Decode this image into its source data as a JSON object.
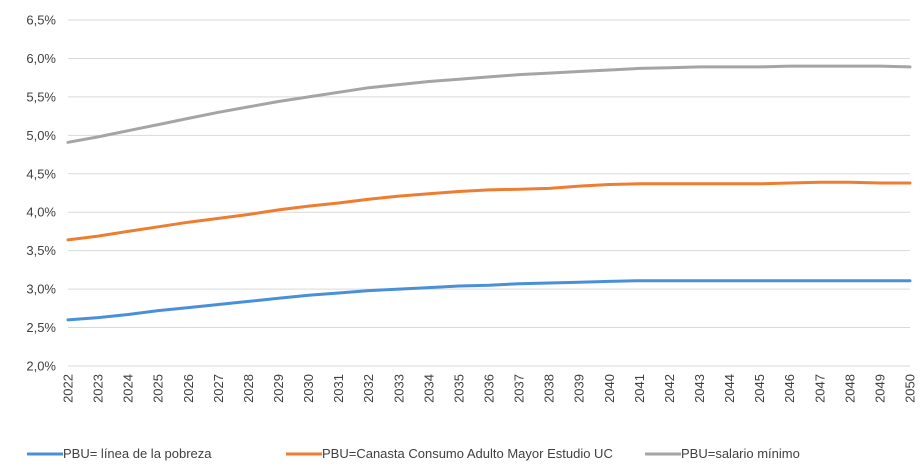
{
  "chart_data": {
    "type": "line",
    "title": "",
    "xlabel": "",
    "ylabel": "",
    "ylim": [
      0.02,
      0.065
    ],
    "yticks": [
      "2,0%",
      "2,5%",
      "3,0%",
      "3,5%",
      "4,0%",
      "4,5%",
      "5,0%",
      "5,5%",
      "6,0%",
      "6,5%"
    ],
    "x": [
      "2022",
      "2023",
      "2024",
      "2025",
      "2026",
      "2027",
      "2028",
      "2029",
      "2030",
      "2031",
      "2032",
      "2033",
      "2034",
      "2035",
      "2036",
      "2037",
      "2038",
      "2039",
      "2040",
      "2041",
      "2042",
      "2043",
      "2044",
      "2045",
      "2046",
      "2047",
      "2048",
      "2049",
      "2050"
    ],
    "grid": true,
    "legend_position": "bottom",
    "series": [
      {
        "name": "PBU= línea de la pobreza",
        "color": "#4a90d9",
        "values": [
          0.026,
          0.0263,
          0.0267,
          0.0272,
          0.0276,
          0.028,
          0.0284,
          0.0288,
          0.0292,
          0.0295,
          0.0298,
          0.03,
          0.0302,
          0.0304,
          0.0305,
          0.0307,
          0.0308,
          0.0309,
          0.031,
          0.0311,
          0.0311,
          0.0311,
          0.0311,
          0.0311,
          0.0311,
          0.0311,
          0.0311,
          0.0311,
          0.0311
        ]
      },
      {
        "name": "PBU=Canasta Consumo Adulto Mayor Estudio UC",
        "color": "#ed7d31",
        "values": [
          0.0364,
          0.0369,
          0.0375,
          0.0381,
          0.0387,
          0.0392,
          0.0397,
          0.0403,
          0.0408,
          0.0412,
          0.0417,
          0.0421,
          0.0424,
          0.0427,
          0.0429,
          0.043,
          0.0431,
          0.0434,
          0.0436,
          0.0437,
          0.0437,
          0.0437,
          0.0437,
          0.0437,
          0.0438,
          0.0439,
          0.0439,
          0.0438,
          0.0438
        ]
      },
      {
        "name": "PBU=salario mínimo",
        "color": "#a5a5a5",
        "values": [
          0.0491,
          0.0498,
          0.0506,
          0.0514,
          0.0522,
          0.053,
          0.0537,
          0.0544,
          0.055,
          0.0556,
          0.0562,
          0.0566,
          0.057,
          0.0573,
          0.0576,
          0.0579,
          0.0581,
          0.0583,
          0.0585,
          0.0587,
          0.0588,
          0.0589,
          0.0589,
          0.0589,
          0.059,
          0.059,
          0.059,
          0.059,
          0.0589
        ]
      }
    ]
  }
}
